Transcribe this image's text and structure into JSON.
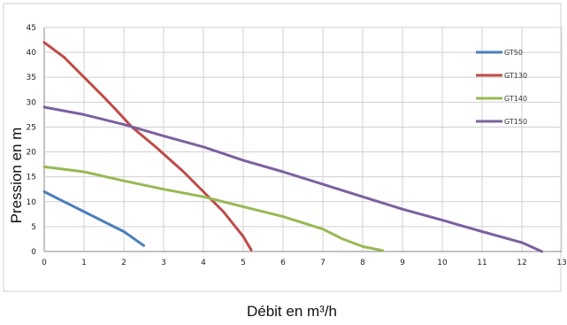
{
  "chart_data": {
    "type": "line",
    "xlabel": "Débit en m³/h",
    "ylabel": "Pression en m",
    "xlim": [
      0,
      13
    ],
    "ylim": [
      0,
      45
    ],
    "xticks": [
      0,
      1,
      2,
      3,
      4,
      5,
      6,
      7,
      8,
      9,
      10,
      11,
      12,
      13
    ],
    "yticks": [
      0,
      5,
      10,
      15,
      20,
      25,
      30,
      35,
      40,
      45
    ],
    "grid": true,
    "legend": "right",
    "series": [
      {
        "name": "GT50",
        "color": "#4a7ebb",
        "x": [
          0,
          0.5,
          1,
          1.5,
          2,
          2.5
        ],
        "y": [
          12,
          10,
          8,
          6,
          4,
          1.2
        ]
      },
      {
        "name": "GT130",
        "color": "#be4b48",
        "x": [
          0,
          0.5,
          1,
          1.5,
          1.8,
          2.2,
          2.8,
          3.5,
          4,
          4.5,
          5,
          5.2
        ],
        "y": [
          42,
          39,
          35,
          31,
          28.5,
          25,
          21,
          16,
          12,
          8,
          3,
          0.3
        ]
      },
      {
        "name": "GT140",
        "color": "#98b954",
        "x": [
          0,
          1,
          2,
          3,
          4,
          5,
          6,
          7,
          7.5,
          8,
          8.5
        ],
        "y": [
          17,
          16,
          14.2,
          12.5,
          11,
          9,
          7,
          4.5,
          2.5,
          1,
          0.2
        ]
      },
      {
        "name": "GT150",
        "color": "#7d60a0",
        "x": [
          0,
          1,
          2,
          3,
          4,
          5,
          6,
          7,
          8,
          9,
          10,
          11,
          12,
          12.5
        ],
        "y": [
          29,
          27.5,
          25.5,
          23.2,
          21,
          18.3,
          16,
          13.5,
          11,
          8.5,
          6.3,
          4,
          1.8,
          0
        ]
      }
    ]
  }
}
